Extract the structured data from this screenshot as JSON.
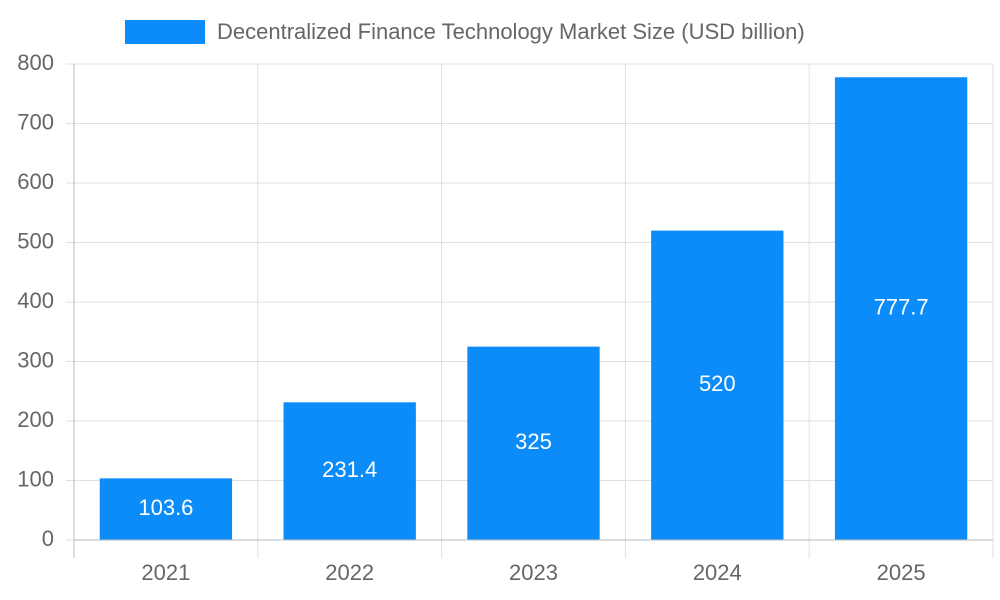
{
  "chart_data": {
    "type": "bar",
    "legend_label": "Decentralized Finance Technology Market Size (USD billion)",
    "categories": [
      "2021",
      "2022",
      "2023",
      "2024",
      "2025"
    ],
    "values": [
      103.6,
      231.4,
      325,
      520,
      777.7
    ],
    "color": "#0c8cf9",
    "ylim": [
      0,
      800
    ],
    "yticks": [
      0,
      100,
      200,
      300,
      400,
      500,
      600,
      700,
      800
    ],
    "grid": true
  }
}
